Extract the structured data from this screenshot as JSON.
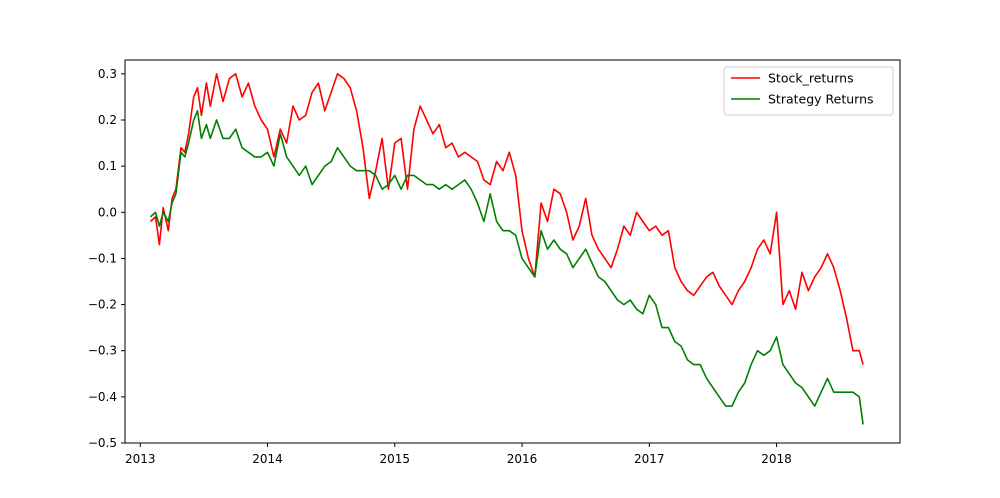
{
  "chart_data": {
    "type": "line",
    "title": "",
    "xlabel": "",
    "ylabel": "",
    "xlim": [
      2012.88,
      2018.97
    ],
    "ylim": [
      -0.5,
      0.33
    ],
    "x_ticks": [
      {
        "value": 2013,
        "label": "2013"
      },
      {
        "value": 2014,
        "label": "2014"
      },
      {
        "value": 2015,
        "label": "2015"
      },
      {
        "value": 2016,
        "label": "2016"
      },
      {
        "value": 2017,
        "label": "2017"
      },
      {
        "value": 2018,
        "label": "2018"
      }
    ],
    "y_ticks": [
      {
        "value": 0.3,
        "label": "0.3"
      },
      {
        "value": 0.2,
        "label": "0.2"
      },
      {
        "value": 0.1,
        "label": "0.1"
      },
      {
        "value": 0.0,
        "label": "0.0"
      },
      {
        "value": -0.1,
        "label": "−0.1"
      },
      {
        "value": -0.2,
        "label": "−0.2"
      },
      {
        "value": -0.3,
        "label": "−0.3"
      },
      {
        "value": -0.4,
        "label": "−0.4"
      },
      {
        "value": -0.5,
        "label": "−0.5"
      }
    ],
    "grid": false,
    "legend_position": "top-right",
    "series": [
      {
        "name": " Stock_returns",
        "color": "#ff0000",
        "x": [
          2013.08,
          2013.12,
          2013.15,
          2013.18,
          2013.22,
          2013.25,
          2013.28,
          2013.32,
          2013.35,
          2013.38,
          2013.42,
          2013.45,
          2013.48,
          2013.52,
          2013.55,
          2013.6,
          2013.65,
          2013.7,
          2013.75,
          2013.8,
          2013.85,
          2013.9,
          2013.95,
          2014.0,
          2014.05,
          2014.1,
          2014.15,
          2014.2,
          2014.25,
          2014.3,
          2014.35,
          2014.4,
          2014.45,
          2014.5,
          2014.55,
          2014.6,
          2014.65,
          2014.7,
          2014.75,
          2014.8,
          2014.85,
          2014.9,
          2014.95,
          2015.0,
          2015.05,
          2015.1,
          2015.15,
          2015.2,
          2015.25,
          2015.3,
          2015.35,
          2015.4,
          2015.45,
          2015.5,
          2015.55,
          2015.6,
          2015.65,
          2015.7,
          2015.75,
          2015.8,
          2015.85,
          2015.9,
          2015.95,
          2016.0,
          2016.05,
          2016.1,
          2016.15,
          2016.2,
          2016.25,
          2016.3,
          2016.35,
          2016.4,
          2016.45,
          2016.5,
          2016.55,
          2016.6,
          2016.65,
          2016.7,
          2016.75,
          2016.8,
          2016.85,
          2016.9,
          2016.95,
          2017.0,
          2017.05,
          2017.1,
          2017.15,
          2017.2,
          2017.25,
          2017.3,
          2017.35,
          2017.4,
          2017.45,
          2017.5,
          2017.55,
          2017.6,
          2017.65,
          2017.7,
          2017.75,
          2017.8,
          2017.85,
          2017.9,
          2017.95,
          2018.0,
          2018.05,
          2018.1,
          2018.15,
          2018.2,
          2018.25,
          2018.3,
          2018.35,
          2018.4,
          2018.45,
          2018.5,
          2018.55,
          2018.6,
          2018.65,
          2018.68
        ],
        "values": [
          -0.02,
          -0.01,
          -0.07,
          0.01,
          -0.04,
          0.03,
          0.05,
          0.14,
          0.13,
          0.17,
          0.25,
          0.27,
          0.21,
          0.28,
          0.23,
          0.3,
          0.24,
          0.29,
          0.3,
          0.25,
          0.28,
          0.23,
          0.2,
          0.18,
          0.12,
          0.18,
          0.15,
          0.23,
          0.2,
          0.21,
          0.26,
          0.28,
          0.22,
          0.26,
          0.3,
          0.29,
          0.27,
          0.22,
          0.14,
          0.03,
          0.09,
          0.16,
          0.05,
          0.15,
          0.16,
          0.05,
          0.18,
          0.23,
          0.2,
          0.17,
          0.19,
          0.14,
          0.15,
          0.12,
          0.13,
          0.12,
          0.11,
          0.07,
          0.06,
          0.11,
          0.09,
          0.13,
          0.08,
          -0.04,
          -0.1,
          -0.14,
          0.02,
          -0.02,
          0.05,
          0.04,
          0.0,
          -0.06,
          -0.03,
          0.03,
          -0.05,
          -0.08,
          -0.1,
          -0.12,
          -0.08,
          -0.03,
          -0.05,
          0.0,
          -0.02,
          -0.04,
          -0.03,
          -0.05,
          -0.04,
          -0.12,
          -0.15,
          -0.17,
          -0.18,
          -0.16,
          -0.14,
          -0.13,
          -0.16,
          -0.18,
          -0.2,
          -0.17,
          -0.15,
          -0.12,
          -0.08,
          -0.06,
          -0.09,
          0.0,
          -0.2,
          -0.17,
          -0.21,
          -0.13,
          -0.17,
          -0.14,
          -0.12,
          -0.09,
          -0.12,
          -0.17,
          -0.23,
          -0.3,
          -0.3,
          -0.33
        ]
      },
      {
        "name": "Strategy Returns",
        "color": "#008000",
        "x": [
          2013.08,
          2013.12,
          2013.15,
          2013.18,
          2013.22,
          2013.25,
          2013.28,
          2013.32,
          2013.35,
          2013.38,
          2013.42,
          2013.45,
          2013.48,
          2013.52,
          2013.55,
          2013.6,
          2013.65,
          2013.7,
          2013.75,
          2013.8,
          2013.85,
          2013.9,
          2013.95,
          2014.0,
          2014.05,
          2014.1,
          2014.15,
          2014.2,
          2014.25,
          2014.3,
          2014.35,
          2014.4,
          2014.45,
          2014.5,
          2014.55,
          2014.6,
          2014.65,
          2014.7,
          2014.75,
          2014.8,
          2014.85,
          2014.9,
          2014.95,
          2015.0,
          2015.05,
          2015.1,
          2015.15,
          2015.2,
          2015.25,
          2015.3,
          2015.35,
          2015.4,
          2015.45,
          2015.5,
          2015.55,
          2015.6,
          2015.65,
          2015.7,
          2015.75,
          2015.8,
          2015.85,
          2015.9,
          2015.95,
          2016.0,
          2016.05,
          2016.1,
          2016.15,
          2016.2,
          2016.25,
          2016.3,
          2016.35,
          2016.4,
          2016.45,
          2016.5,
          2016.55,
          2016.6,
          2016.65,
          2016.7,
          2016.75,
          2016.8,
          2016.85,
          2016.9,
          2016.95,
          2017.0,
          2017.05,
          2017.1,
          2017.15,
          2017.2,
          2017.25,
          2017.3,
          2017.35,
          2017.4,
          2017.45,
          2017.5,
          2017.55,
          2017.6,
          2017.65,
          2017.7,
          2017.75,
          2017.8,
          2017.85,
          2017.9,
          2017.95,
          2018.0,
          2018.05,
          2018.1,
          2018.15,
          2018.2,
          2018.25,
          2018.3,
          2018.35,
          2018.4,
          2018.45,
          2018.5,
          2018.55,
          2018.6,
          2018.65,
          2018.68
        ],
        "values": [
          -0.01,
          0.0,
          -0.03,
          0.0,
          -0.02,
          0.02,
          0.04,
          0.13,
          0.12,
          0.15,
          0.2,
          0.22,
          0.16,
          0.19,
          0.16,
          0.2,
          0.16,
          0.16,
          0.18,
          0.14,
          0.13,
          0.12,
          0.12,
          0.13,
          0.1,
          0.17,
          0.12,
          0.1,
          0.08,
          0.1,
          0.06,
          0.08,
          0.1,
          0.11,
          0.14,
          0.12,
          0.1,
          0.09,
          0.09,
          0.09,
          0.08,
          0.05,
          0.06,
          0.08,
          0.05,
          0.08,
          0.08,
          0.07,
          0.06,
          0.06,
          0.05,
          0.06,
          0.05,
          0.06,
          0.07,
          0.05,
          0.02,
          -0.02,
          0.04,
          -0.02,
          -0.04,
          -0.04,
          -0.05,
          -0.1,
          -0.12,
          -0.14,
          -0.04,
          -0.08,
          -0.06,
          -0.08,
          -0.09,
          -0.12,
          -0.1,
          -0.08,
          -0.11,
          -0.14,
          -0.15,
          -0.17,
          -0.19,
          -0.2,
          -0.19,
          -0.21,
          -0.22,
          -0.18,
          -0.2,
          -0.25,
          -0.25,
          -0.28,
          -0.29,
          -0.32,
          -0.33,
          -0.33,
          -0.36,
          -0.38,
          -0.4,
          -0.42,
          -0.42,
          -0.39,
          -0.37,
          -0.33,
          -0.3,
          -0.31,
          -0.3,
          -0.27,
          -0.33,
          -0.35,
          -0.37,
          -0.38,
          -0.4,
          -0.42,
          -0.39,
          -0.36,
          -0.39,
          -0.39,
          -0.39,
          -0.39,
          -0.4,
          -0.46
        ]
      }
    ]
  }
}
